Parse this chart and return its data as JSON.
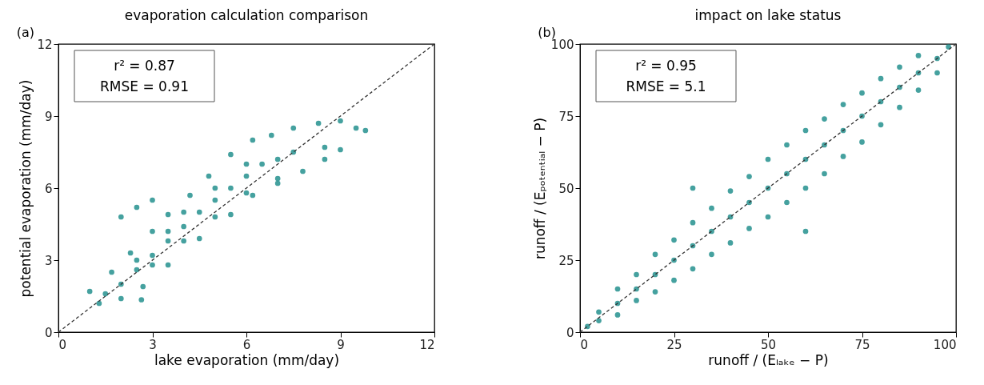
{
  "chart_data": [
    {
      "type": "scatter",
      "title": "evaporation calculation comparison",
      "xlabel": "lake evaporation (mm/day)",
      "ylabel": "potential evaporation (mm/day)",
      "xlim": [
        0,
        12
      ],
      "ylim": [
        0,
        12
      ],
      "xticks": [
        0,
        3,
        6,
        9,
        12
      ],
      "yticks": [
        0,
        3,
        6,
        9,
        12
      ],
      "grid": false,
      "annotations": [
        "(a)",
        "r² = 0.87",
        "RMSE = 0.91"
      ],
      "series": [
        {
          "type": "scatter",
          "marker": "circle",
          "color": "#178a87",
          "x": [
            1.3,
            2,
            2.7,
            3.5,
            4.5,
            5.5,
            6.2,
            7,
            7.8,
            8.5,
            9,
            1,
            1.7,
            2.3,
            3,
            3.5,
            4.2,
            4.8,
            5.5,
            6.2,
            6.8,
            7.5,
            8.3,
            9,
            2,
            2.5,
            3,
            3.5,
            4,
            4.5,
            5,
            5.5,
            6,
            6.5,
            7,
            7.5,
            2,
            2.5,
            3,
            2.65,
            9.5,
            9.8,
            8.5,
            7,
            3,
            4,
            5,
            6,
            4,
            5,
            6,
            3.5,
            2.5,
            1.5
          ],
          "values": [
            1.2,
            1.4,
            1.9,
            2.8,
            3.9,
            4.9,
            5.7,
            6.4,
            6.7,
            7.2,
            7.6,
            1.7,
            2.5,
            3.3,
            4.2,
            4.9,
            5.7,
            6.5,
            7.4,
            8,
            8.2,
            8.5,
            8.7,
            8.8,
            2,
            2.6,
            3.2,
            3.8,
            4.4,
            5,
            5.5,
            6,
            6.5,
            7,
            7.2,
            7.5,
            4.8,
            5.2,
            5.5,
            1.35,
            8.5,
            8.4,
            7.7,
            6.2,
            2.8,
            3.8,
            4.8,
            5.8,
            5,
            6,
            7,
            4.2,
            3,
            1.6
          ]
        },
        {
          "type": "line",
          "color": "#333333",
          "line_style": "dashed",
          "x": [
            0,
            12
          ],
          "values": [
            0,
            12
          ]
        }
      ]
    },
    {
      "type": "scatter",
      "title": "impact on lake status",
      "xlabel": "runoff / (Eₗₐₖₑ − P)",
      "ylabel": "runoff / (Eₚₒₜₑₙₜᵢₐₗ − P)",
      "xlim": [
        0,
        100
      ],
      "ylim": [
        0,
        100
      ],
      "xticks": [
        0,
        25,
        50,
        75,
        100
      ],
      "yticks": [
        0,
        25,
        50,
        75,
        100
      ],
      "grid": false,
      "annotations": [
        "(b)",
        "r² = 0.95",
        "RMSE = 5.1"
      ],
      "series": [
        {
          "type": "scatter",
          "marker": "circle",
          "color": "#178a87",
          "x": [
            2,
            5,
            5,
            10,
            10,
            10,
            15,
            15,
            15,
            20,
            20,
            20,
            25,
            25,
            25,
            30,
            30,
            30,
            35,
            35,
            35,
            40,
            40,
            40,
            45,
            45,
            45,
            50,
            50,
            50,
            55,
            55,
            55,
            60,
            60,
            60,
            65,
            65,
            65,
            70,
            70,
            70,
            75,
            75,
            75,
            80,
            80,
            80,
            85,
            85,
            85,
            90,
            90,
            90,
            95,
            95,
            98,
            30,
            60
          ],
          "values": [
            2,
            4,
            7,
            10,
            6,
            15,
            15,
            11,
            20,
            20,
            14,
            27,
            25,
            18,
            32,
            30,
            22,
            38,
            35,
            27,
            43,
            40,
            31,
            49,
            45,
            36,
            54,
            50,
            40,
            60,
            55,
            45,
            65,
            60,
            50,
            70,
            65,
            55,
            74,
            70,
            61,
            79,
            75,
            66,
            83,
            80,
            72,
            88,
            85,
            78,
            92,
            90,
            84,
            96,
            95,
            90,
            99,
            50,
            35
          ]
        },
        {
          "type": "line",
          "color": "#333333",
          "line_style": "dashed",
          "x": [
            0,
            100
          ],
          "values": [
            0,
            100
          ]
        }
      ]
    }
  ]
}
